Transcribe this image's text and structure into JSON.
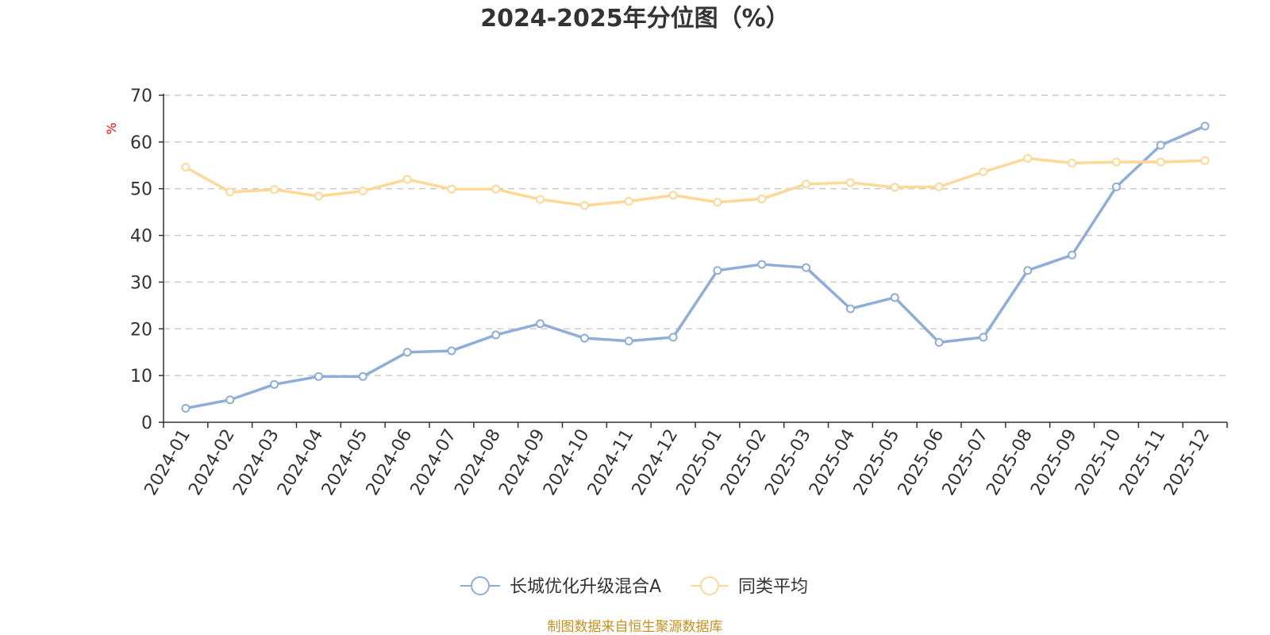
{
  "chart_data": {
    "type": "line",
    "title": "2024-2025年分位图（%）",
    "ylabel": "%",
    "xlabel": "",
    "ylim": [
      0,
      70
    ],
    "yticks": [
      0,
      10,
      20,
      30,
      40,
      50,
      60,
      70
    ],
    "grid": true,
    "legend_position": "bottom",
    "categories": [
      "2024-01",
      "2024-02",
      "2024-03",
      "2024-04",
      "2024-05",
      "2024-06",
      "2024-07",
      "2024-08",
      "2024-09",
      "2024-10",
      "2024-11",
      "2024-12",
      "2025-01",
      "2025-02",
      "2025-03",
      "2025-04",
      "2025-05",
      "2025-06",
      "2025-07",
      "2025-08",
      "2025-09",
      "2025-10",
      "2025-11",
      "2025-12"
    ],
    "series": [
      {
        "name": "长城优化升级混合A",
        "color": "#8eaed9",
        "values": [
          3.0,
          4.8,
          8.1,
          9.8,
          9.8,
          15.0,
          15.3,
          18.7,
          21.1,
          18.0,
          17.4,
          18.2,
          32.5,
          33.8,
          33.1,
          24.3,
          26.7,
          17.1,
          18.2,
          32.5,
          35.8,
          50.4,
          59.3,
          63.4
        ]
      },
      {
        "name": "同类平均",
        "color": "#fdd897",
        "values": [
          54.6,
          49.3,
          49.8,
          48.4,
          49.5,
          52.0,
          49.9,
          49.9,
          47.7,
          46.4,
          47.3,
          48.6,
          47.1,
          47.8,
          51.0,
          51.3,
          50.3,
          50.4,
          53.6,
          56.5,
          55.5,
          55.7,
          55.7,
          56.0
        ]
      }
    ]
  },
  "source": "制图数据来自恒生聚源数据库"
}
